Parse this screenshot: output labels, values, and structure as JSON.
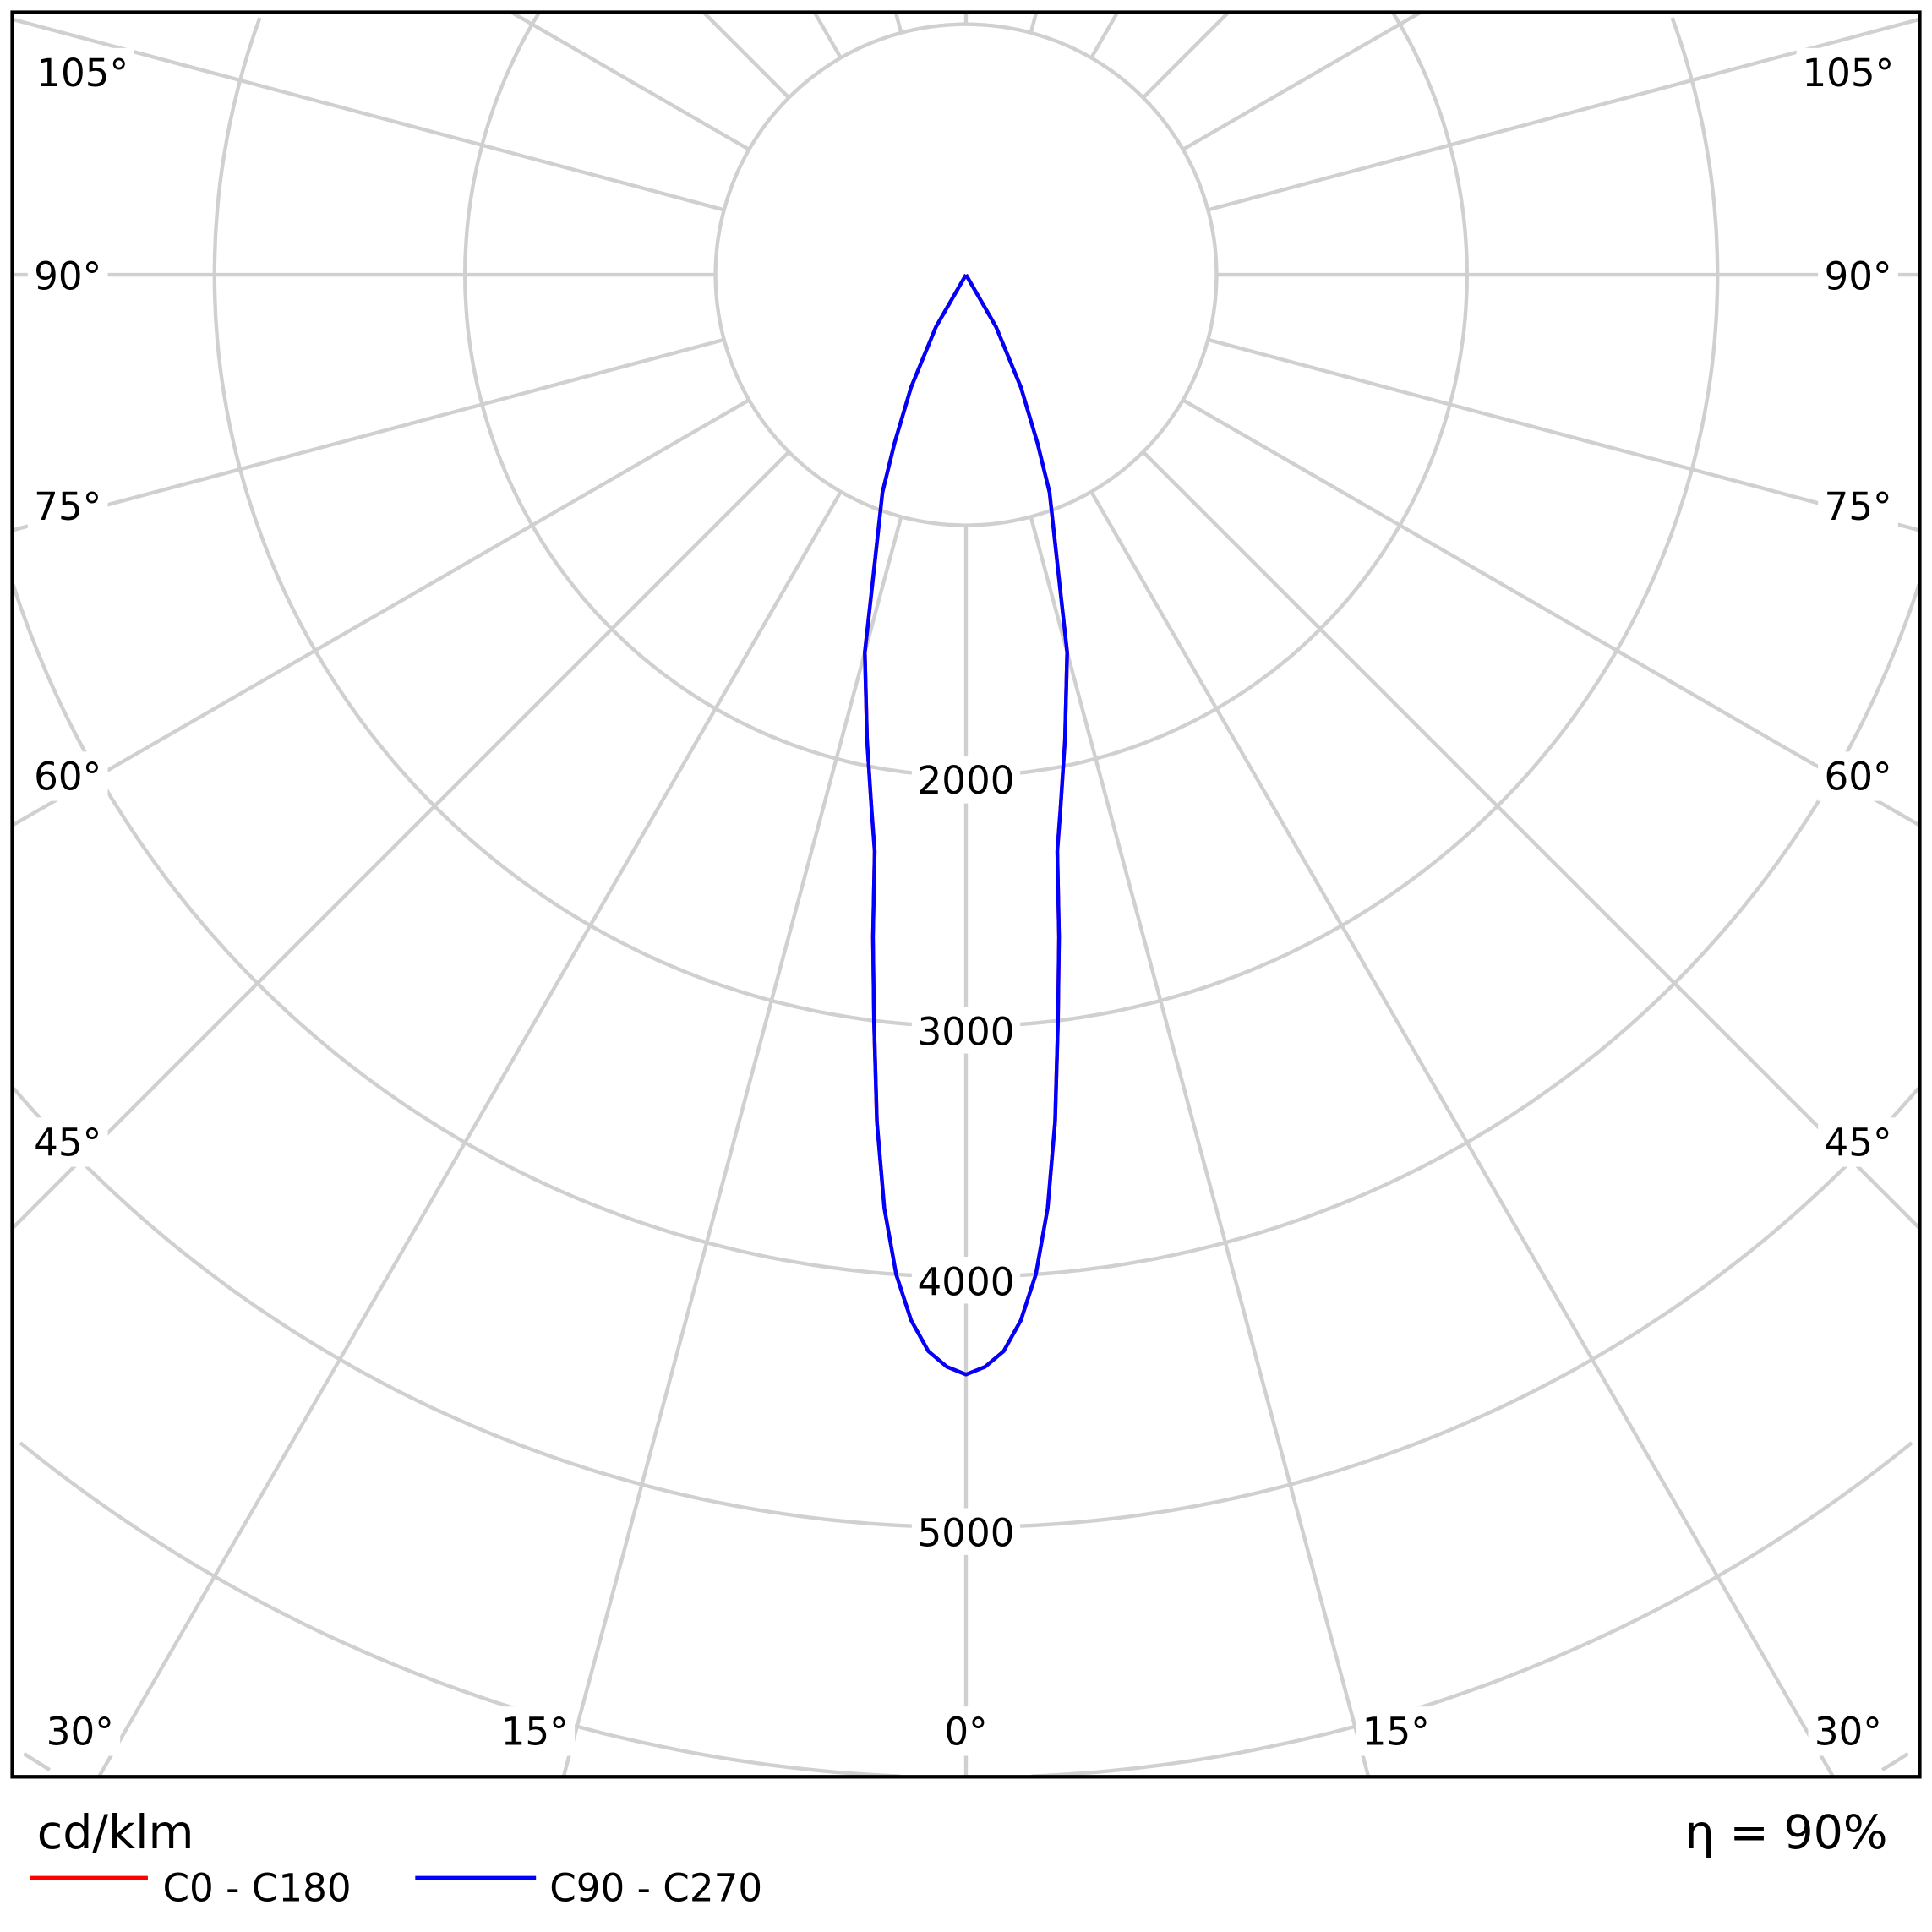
{
  "chart_data": {
    "type": "polar-line",
    "unit_label": "cd/klm",
    "efficiency_label": "η = 90%",
    "radial_ticks": [
      2000,
      3000,
      4000,
      5000
    ],
    "radial_rings": [
      1000,
      2000,
      3000,
      4000,
      5000,
      6000,
      7000
    ],
    "angle_step_deg": 15,
    "angle_labels": {
      "a0": "0°",
      "a15": "15°",
      "a30": "30°",
      "a45": "45°",
      "a60": "60°",
      "a75": "75°",
      "a90": "90°",
      "a105": "105°"
    },
    "grid": true,
    "legend_position": "bottom-left",
    "series": [
      {
        "name": "C0 - C180",
        "color": "#ff0000",
        "gamma_deg": [
          0,
          1,
          2,
          3,
          4,
          5,
          6,
          7,
          8,
          9,
          10,
          12,
          15,
          17,
          21,
          23,
          26,
          30,
          90
        ],
        "values": [
          4390,
          4360,
          4300,
          4180,
          4000,
          3740,
          3400,
          3010,
          2670,
          2330,
          2170,
          1900,
          1560,
          1270,
          930,
          730,
          500,
          240,
          0
        ]
      },
      {
        "name": "C90 - C270",
        "color": "#0000ff",
        "gamma_deg": [
          0,
          1,
          2,
          3,
          4,
          5,
          6,
          7,
          8,
          9,
          10,
          12,
          15,
          17,
          21,
          23,
          26,
          30,
          90
        ],
        "values": [
          4390,
          4360,
          4300,
          4180,
          4000,
          3740,
          3400,
          3010,
          2670,
          2330,
          2170,
          1900,
          1560,
          1270,
          930,
          730,
          500,
          240,
          0
        ]
      }
    ]
  }
}
